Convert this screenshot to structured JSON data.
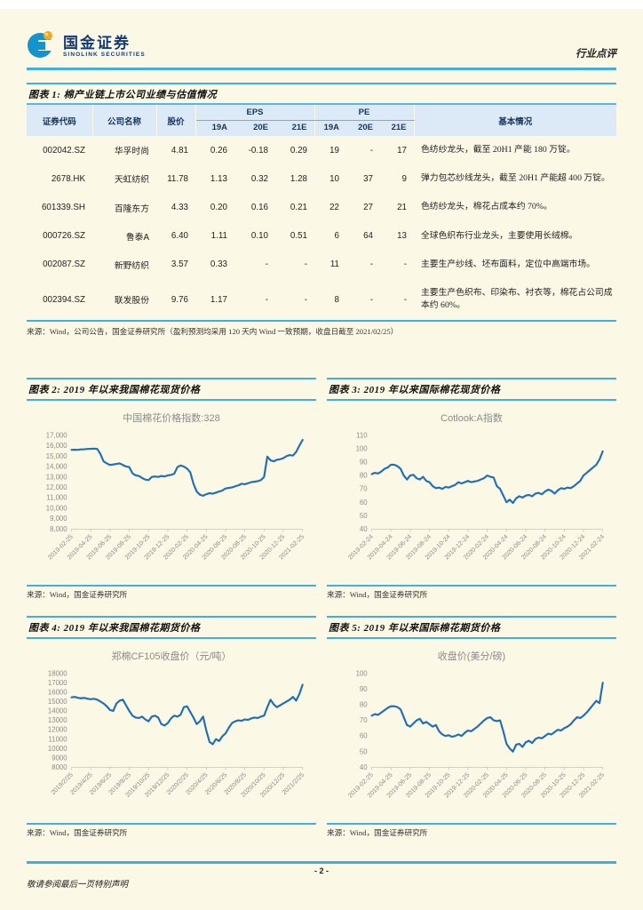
{
  "header": {
    "brand_cn": "国金证券",
    "brand_en": "SINOLINK SECURITIES",
    "report_type": "行业点评"
  },
  "figure1": {
    "title": "图表 1: 棉产业链上市公司业绩与估值情况",
    "table": {
      "col_code": "证券代码",
      "col_name": "公司名称",
      "col_price": "股价",
      "group_eps": "EPS",
      "group_pe": "PE",
      "col_info": "基本情况",
      "subcols": [
        "19A",
        "20E",
        "21E",
        "19A",
        "20E",
        "21E"
      ],
      "rows": [
        {
          "code": "002042.SZ",
          "name": "华孚时尚",
          "price": "4.81",
          "eps19": "0.26",
          "eps20": "-0.18",
          "eps21": "0.29",
          "pe19": "19",
          "pe20": "-",
          "pe21": "17",
          "info": "色纺纱龙头，截至 20H1 产能 180 万锭。"
        },
        {
          "code": "2678.HK",
          "name": "天虹纺织",
          "price": "11.78",
          "eps19": "1.13",
          "eps20": "0.32",
          "eps21": "1.28",
          "pe19": "10",
          "pe20": "37",
          "pe21": "9",
          "info": "弹力包芯纱线龙头，截至 20H1 产能超 400 万锭。"
        },
        {
          "code": "601339.SH",
          "name": "百隆东方",
          "price": "4.33",
          "eps19": "0.20",
          "eps20": "0.16",
          "eps21": "0.21",
          "pe19": "22",
          "pe20": "27",
          "pe21": "21",
          "info": "色纺纱龙头，棉花占成本约 70%。"
        },
        {
          "code": "000726.SZ",
          "name": "鲁泰A",
          "price": "6.40",
          "eps19": "1.11",
          "eps20": "0.10",
          "eps21": "0.51",
          "pe19": "6",
          "pe20": "64",
          "pe21": "13",
          "info": "全球色织布行业龙头，主要使用长绒棉。"
        },
        {
          "code": "002087.SZ",
          "name": "新野纺织",
          "price": "3.57",
          "eps19": "0.33",
          "eps20": "-",
          "eps21": "-",
          "pe19": "11",
          "pe20": "-",
          "pe21": "-",
          "info": "主要生产纱线、坯布面料，定位中高端市场。"
        },
        {
          "code": "002394.SZ",
          "name": "联发股份",
          "price": "9.76",
          "eps19": "1.17",
          "eps20": "-",
          "eps21": "-",
          "pe19": "8",
          "pe20": "-",
          "pe21": "-",
          "info": "主要生产色织布、印染布、衬衣等，棉花占公司成本约 60%。"
        }
      ]
    },
    "source": "来源：Wind，公司公告，国金证券研究所（盈利预测均采用 120 天内 Wind 一致预期，收盘日截至 2021/02/25）"
  },
  "chart_data": [
    {
      "type": "line",
      "figure_title": "图表 2: 2019 年以来我国棉花现货价格",
      "title": "中国棉花价格指数:328",
      "source": "来源：Wind，国金证券研究所",
      "line_color": "#1F6EB8",
      "ylim": [
        8000,
        17000
      ],
      "yticks": [
        8000,
        9000,
        10000,
        11000,
        12000,
        13000,
        14000,
        15000,
        16000,
        17000
      ],
      "ytick_labels": [
        "8,000",
        "9,000",
        "10,000",
        "11,000",
        "12,000",
        "13,000",
        "14,000",
        "15,000",
        "16,000",
        "17,000"
      ],
      "xlabels": [
        "2019-02-25",
        "2019-04-25",
        "2019-06-25",
        "2019-08-25",
        "2019-10-25",
        "2019-12-25",
        "2020-02-25",
        "2020-04-25",
        "2020-06-25",
        "2020-08-25",
        "2020-10-25",
        "2020-12-25",
        "2021-02-25"
      ],
      "values": [
        15600,
        15610,
        15600,
        15640,
        15660,
        15680,
        15700,
        15720,
        15690,
        15200,
        14500,
        14300,
        14150,
        14200,
        14250,
        14300,
        14150,
        14000,
        13950,
        13350,
        13150,
        13100,
        12900,
        12750,
        12700,
        13000,
        13050,
        13000,
        13100,
        13050,
        13150,
        13200,
        13300,
        13950,
        14100,
        14000,
        13800,
        13450,
        12350,
        11600,
        11300,
        11200,
        11350,
        11450,
        11400,
        11500,
        11600,
        11700,
        11900,
        11950,
        12000,
        12100,
        12200,
        12350,
        12300,
        12400,
        12500,
        12550,
        12600,
        12700,
        13000,
        14950,
        14600,
        14500,
        14650,
        14700,
        14800,
        15000,
        15100,
        15050,
        15400,
        16000,
        16550
      ]
    },
    {
      "type": "line",
      "figure_title": "图表 3: 2019 年以来国际棉花现货价格",
      "title": "Cotlook:A指数",
      "source": "来源：Wind，国金证券研究所",
      "line_color": "#1F6EB8",
      "ylim": [
        40,
        110
      ],
      "yticks": [
        40,
        50,
        60,
        70,
        80,
        90,
        100,
        110
      ],
      "ytick_labels": [
        "40",
        "50",
        "60",
        "70",
        "80",
        "90",
        "100",
        "110"
      ],
      "xlabels": [
        "2019-02-24",
        "2019-04-24",
        "2019-06-24",
        "2019-08-24",
        "2019-10-24",
        "2019-12-24",
        "2020-02-24",
        "2020-04-24",
        "2020-06-24",
        "2020-08-24",
        "2020-10-24",
        "2020-12-24",
        "2021-02-24"
      ],
      "values": [
        81,
        82,
        81.5,
        83,
        85,
        86,
        88,
        88,
        87,
        85,
        80,
        77,
        80,
        80.5,
        78,
        77,
        79,
        76,
        75,
        72,
        70.5,
        71,
        70,
        71.5,
        71,
        72,
        73,
        75,
        74,
        75,
        76,
        75,
        75.5,
        76,
        77,
        78,
        80,
        79,
        78.5,
        72,
        70,
        65,
        60,
        62,
        59.5,
        63,
        64.5,
        63.5,
        65,
        65.5,
        64.5,
        66.5,
        67,
        66,
        68,
        69.5,
        68.5,
        66.5,
        69,
        70.5,
        70,
        71,
        70.5,
        72,
        74,
        76,
        80,
        82,
        84,
        86,
        88,
        92,
        98
      ]
    },
    {
      "type": "line",
      "figure_title": "图表 4: 2019 年以来我国棉花期货价格",
      "title": "郑棉CF105收盘价（元/吨）",
      "source": "来源：Wind，国金证券研究所",
      "line_color": "#1F6EB8",
      "ylim": [
        8000,
        18000
      ],
      "yticks": [
        8000,
        9000,
        10000,
        11000,
        12000,
        13000,
        14000,
        15000,
        16000,
        17000,
        18000
      ],
      "ytick_labels": [
        "8000",
        "9000",
        "10000",
        "11000",
        "12000",
        "13000",
        "14000",
        "15000",
        "16000",
        "17000",
        "18000"
      ],
      "xlabels": [
        "2019/2/25",
        "2019/4/25",
        "2019/6/25",
        "2019/8/25",
        "2019/10/25",
        "2019/12/25",
        "2020/2/25",
        "2020/4/25",
        "2020/6/25",
        "2020/8/25",
        "2020/10/25",
        "2020/12/25",
        "2021/2/25"
      ],
      "values": [
        15450,
        15500,
        15400,
        15350,
        15400,
        15300,
        15250,
        15300,
        15200,
        15000,
        14800,
        14500,
        14100,
        14000,
        14800,
        15100,
        15200,
        14600,
        14000,
        13500,
        13300,
        13250,
        13400,
        13100,
        12900,
        13400,
        13500,
        13300,
        12600,
        12450,
        12700,
        13200,
        13500,
        13400,
        13600,
        14400,
        14500,
        13900,
        13300,
        12600,
        12900,
        13400,
        11900,
        10700,
        10450,
        11000,
        10800,
        11300,
        11600,
        12200,
        12700,
        12900,
        13000,
        12950,
        13100,
        13050,
        13200,
        13300,
        13250,
        13400,
        13500,
        14400,
        15200,
        14700,
        14400,
        14600,
        14800,
        15000,
        15200,
        15500,
        15100,
        15800,
        16800
      ]
    },
    {
      "type": "line",
      "figure_title": "图表 5: 2019 年以来国际棉花期货价格",
      "title": "收盘价(美分/磅)",
      "source": "来源：Wind，国金证券研究所",
      "line_color": "#1F6EB8",
      "ylim": [
        40,
        100
      ],
      "yticks": [
        40,
        50,
        60,
        70,
        80,
        90,
        100
      ],
      "ytick_labels": [
        "40",
        "50",
        "60",
        "70",
        "80",
        "90",
        "100"
      ],
      "xlabels": [
        "2019-02-25",
        "2019-04-25",
        "2019-06-25",
        "2019-08-25",
        "2019-10-25",
        "2019-12-25",
        "2020-02-25",
        "2020-04-25",
        "2020-06-25",
        "2020-08-25",
        "2020-10-25",
        "2020-12-25",
        "2021-02-25"
      ],
      "values": [
        73,
        74,
        73.5,
        75,
        76.5,
        78,
        79,
        79,
        78.5,
        77,
        72,
        67,
        66,
        68,
        70,
        71,
        68,
        69,
        67.5,
        66,
        67,
        63,
        61,
        60,
        60.5,
        59.5,
        60,
        61,
        60,
        62,
        63.5,
        63,
        64.5,
        66,
        68,
        70,
        71.5,
        72,
        70,
        69.5,
        70,
        63,
        55,
        52,
        50,
        54.5,
        55,
        53,
        56,
        57,
        55.5,
        58,
        59,
        58.5,
        60,
        61.5,
        61,
        62.5,
        64,
        63.5,
        65,
        66,
        67.5,
        70,
        72,
        71.5,
        73,
        75,
        77.5,
        80,
        82.5,
        81,
        94
      ]
    }
  ],
  "footer": {
    "page_number": "- 2 -",
    "disclaimer": "敬请参阅最后一页特别声明"
  }
}
